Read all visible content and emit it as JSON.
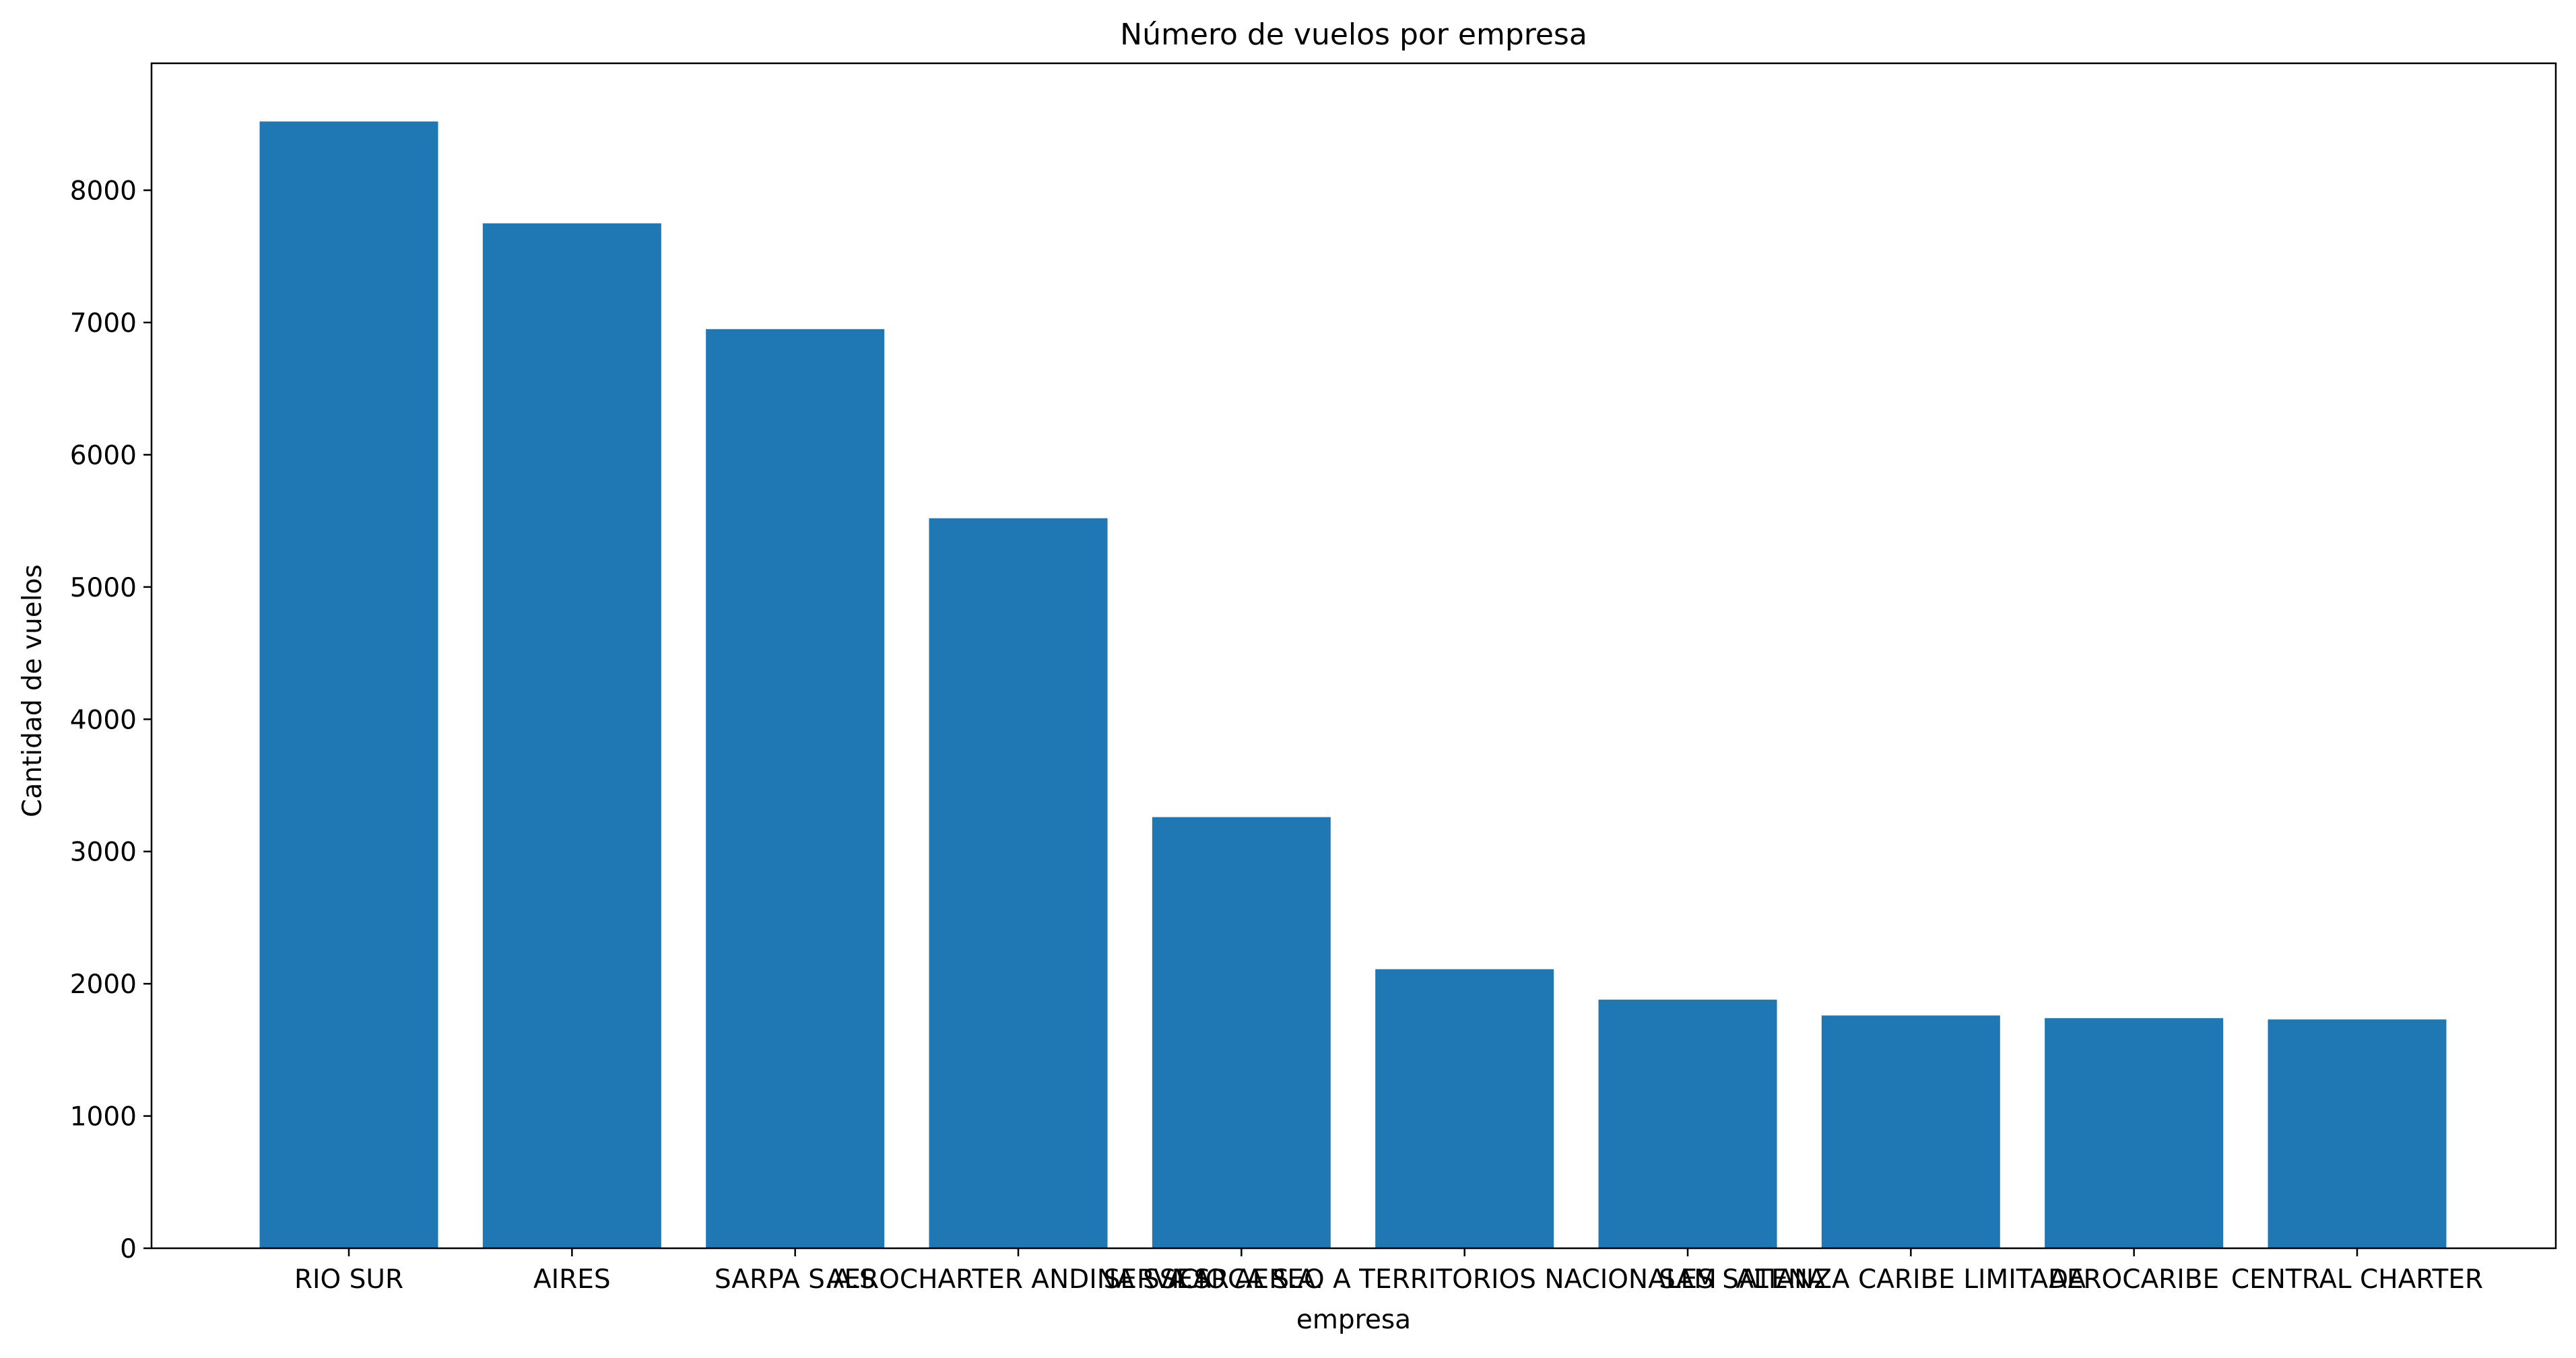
{
  "chart_data": {
    "type": "bar",
    "title": "Número de vuelos por empresa",
    "xlabel": "empresa",
    "ylabel": "Cantidad de vuelos",
    "ylim": [
      0,
      8960
    ],
    "yticks": [
      0,
      1000,
      2000,
      3000,
      4000,
      5000,
      6000,
      7000,
      8000
    ],
    "grid": false,
    "categories": [
      "RIO SUR",
      "AIRES",
      "SARPA S.A.S",
      "AEROCHARTER ANDINA S.A.S",
      "SEARCA S.A.",
      "SERVICIO AEREO A TERRITORIOS NACIONALES SATENA",
      "SAM",
      "ALIANZA CARIBE LIMITADA",
      "AEROCARIBE",
      "CENTRAL CHARTER"
    ],
    "values": [
      8520,
      7750,
      6950,
      5520,
      3260,
      2110,
      1880,
      1760,
      1740,
      1730
    ],
    "colors": {
      "bar": "#1f77b4",
      "axes": "#000000",
      "background": "#ffffff"
    }
  }
}
